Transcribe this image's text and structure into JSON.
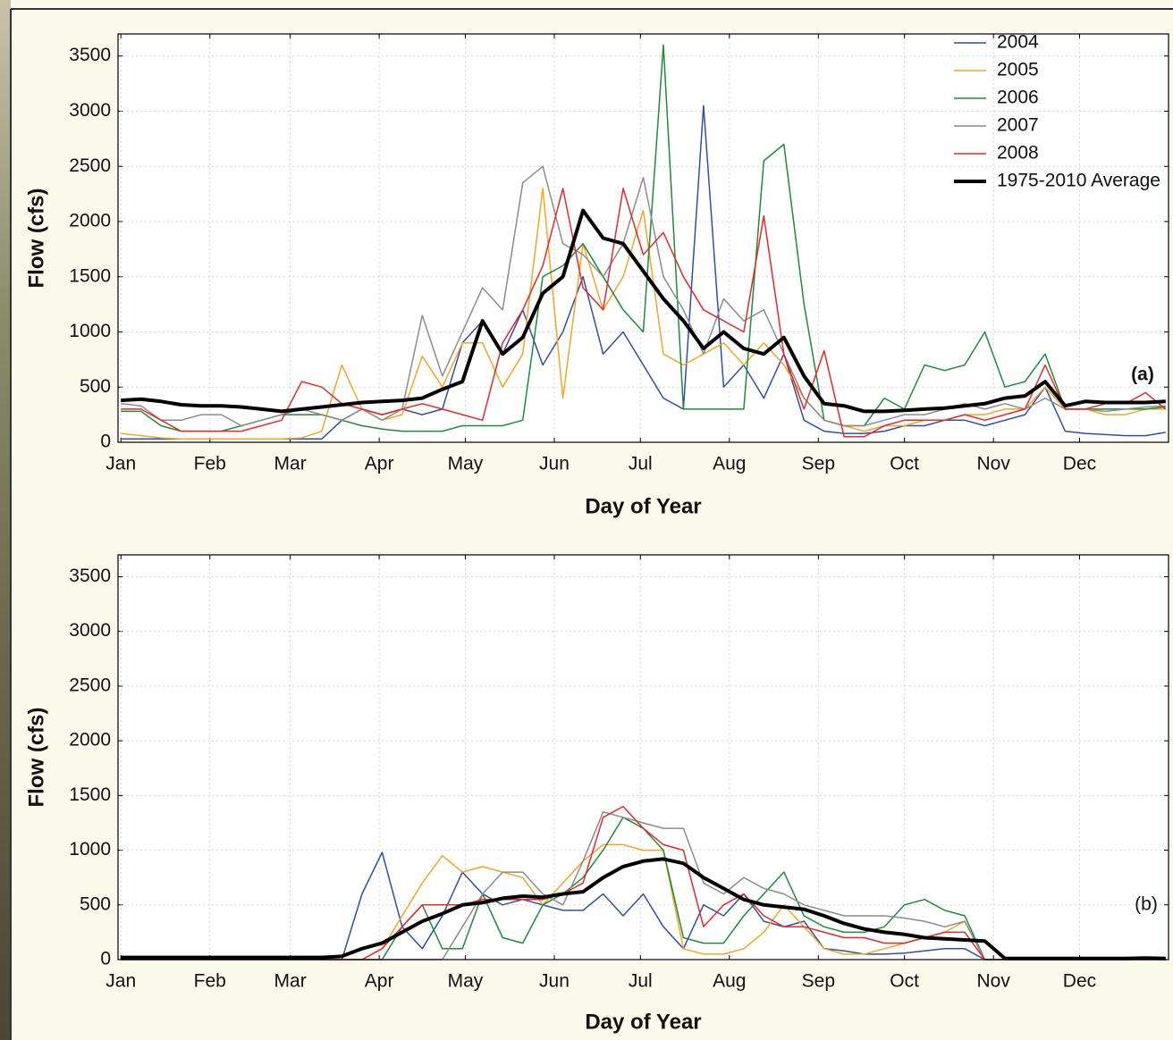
{
  "chart_data": [
    {
      "type": "line",
      "annotation": "(a)",
      "x_label": "Day of Year",
      "y_label": "Flow (cfs)",
      "xlim": [
        0,
        366
      ],
      "ylim": [
        0,
        3700
      ],
      "grid": true,
      "legend": "upper right",
      "xticks": [
        {
          "value": 1,
          "label": "Jan"
        },
        {
          "value": 32,
          "label": "Feb"
        },
        {
          "value": 60,
          "label": "Mar"
        },
        {
          "value": 91,
          "label": "Apr"
        },
        {
          "value": 121,
          "label": "May"
        },
        {
          "value": 152,
          "label": "Jun"
        },
        {
          "value": 182,
          "label": "Jul"
        },
        {
          "value": 213,
          "label": "Aug"
        },
        {
          "value": 244,
          "label": "Sep"
        },
        {
          "value": 274,
          "label": "Oct"
        },
        {
          "value": 305,
          "label": "Nov"
        },
        {
          "value": 335,
          "label": "Dec"
        }
      ],
      "yticks": [
        0,
        500,
        1000,
        1500,
        2000,
        2500,
        3000,
        3500
      ],
      "x": [
        1,
        8,
        15,
        22,
        29,
        36,
        43,
        50,
        57,
        64,
        71,
        78,
        85,
        92,
        99,
        106,
        113,
        120,
        127,
        134,
        141,
        148,
        155,
        162,
        169,
        176,
        183,
        190,
        197,
        204,
        211,
        218,
        225,
        232,
        239,
        246,
        253,
        260,
        267,
        274,
        281,
        288,
        295,
        302,
        309,
        316,
        323,
        330,
        337,
        344,
        351,
        358,
        365
      ],
      "series": [
        {
          "name": "2004",
          "color": "#2f4fa8",
          "width": 1.5,
          "values": [
            30,
            30,
            30,
            30,
            30,
            30,
            30,
            30,
            30,
            30,
            30,
            200,
            300,
            250,
            300,
            250,
            300,
            900,
            1100,
            800,
            1200,
            700,
            1000,
            1500,
            800,
            1000,
            700,
            400,
            300,
            3050,
            500,
            700,
            400,
            800,
            200,
            100,
            80,
            80,
            100,
            150,
            150,
            200,
            200,
            150,
            200,
            250,
            500,
            100,
            80,
            70,
            60,
            60,
            90
          ]
        },
        {
          "name": "2005",
          "color": "#f5a623",
          "width": 1.5,
          "values": [
            80,
            60,
            40,
            30,
            30,
            30,
            30,
            30,
            30,
            40,
            100,
            700,
            300,
            200,
            250,
            780,
            500,
            900,
            900,
            500,
            800,
            2300,
            400,
            1800,
            1200,
            1500,
            2100,
            800,
            700,
            800,
            900,
            700,
            900,
            700,
            400,
            200,
            150,
            100,
            150,
            150,
            200,
            200,
            250,
            250,
            300,
            300,
            500,
            300,
            300,
            250,
            250,
            300,
            300
          ]
        },
        {
          "name": "2006",
          "color": "#1e8c3a",
          "width": 1.5,
          "values": [
            280,
            280,
            150,
            100,
            100,
            100,
            150,
            200,
            250,
            250,
            250,
            200,
            150,
            120,
            100,
            100,
            100,
            150,
            150,
            150,
            200,
            1500,
            1600,
            1800,
            1500,
            1200,
            1000,
            3600,
            300,
            300,
            300,
            300,
            2550,
            2700,
            1250,
            200,
            150,
            150,
            400,
            300,
            700,
            650,
            700,
            1000,
            500,
            550,
            800,
            300,
            300,
            300,
            300,
            300,
            320
          ]
        },
        {
          "name": "2007",
          "color": "#8c8c8c",
          "width": 1.5,
          "values": [
            350,
            330,
            200,
            200,
            250,
            250,
            150,
            200,
            250,
            300,
            250,
            200,
            300,
            200,
            300,
            1150,
            600,
            1000,
            1400,
            1200,
            2350,
            2500,
            1800,
            1700,
            1500,
            1800,
            2400,
            1500,
            1200,
            800,
            1300,
            1100,
            1200,
            800,
            400,
            200,
            150,
            150,
            200,
            250,
            250,
            300,
            350,
            300,
            350,
            300,
            400,
            300,
            300,
            280,
            300,
            320,
            330
          ]
        },
        {
          "name": "2008",
          "color": "#e8282b",
          "width": 1.5,
          "values": [
            300,
            300,
            200,
            100,
            100,
            100,
            100,
            150,
            200,
            550,
            500,
            350,
            300,
            250,
            300,
            350,
            300,
            250,
            200,
            900,
            1200,
            1600,
            2300,
            1400,
            1200,
            2300,
            1700,
            1900,
            1500,
            1200,
            1100,
            1000,
            2050,
            800,
            300,
            830,
            50,
            50,
            150,
            200,
            200,
            200,
            250,
            200,
            250,
            300,
            700,
            300,
            300,
            350,
            350,
            450,
            300
          ]
        },
        {
          "name": "1975-2010 Average",
          "color": "#000000",
          "width": 4,
          "values": [
            380,
            390,
            370,
            340,
            330,
            330,
            320,
            300,
            280,
            300,
            320,
            340,
            360,
            370,
            380,
            400,
            480,
            550,
            1100,
            800,
            950,
            1350,
            1500,
            2100,
            1850,
            1800,
            1550,
            1300,
            1100,
            850,
            1000,
            850,
            800,
            950,
            600,
            350,
            330,
            280,
            280,
            290,
            300,
            310,
            330,
            350,
            400,
            420,
            550,
            330,
            370,
            360,
            360,
            360,
            370
          ]
        }
      ]
    },
    {
      "type": "line",
      "annotation": "(b)",
      "x_label": "Day of Year",
      "y_label": "Flow (cfs)",
      "xlim": [
        0,
        366
      ],
      "ylim": [
        0,
        3700
      ],
      "grid": true,
      "xticks": [
        {
          "value": 1,
          "label": "Jan"
        },
        {
          "value": 32,
          "label": "Feb"
        },
        {
          "value": 60,
          "label": "Mar"
        },
        {
          "value": 91,
          "label": "Apr"
        },
        {
          "value": 121,
          "label": "May"
        },
        {
          "value": 152,
          "label": "Jun"
        },
        {
          "value": 182,
          "label": "Jul"
        },
        {
          "value": 213,
          "label": "Aug"
        },
        {
          "value": 244,
          "label": "Sep"
        },
        {
          "value": 274,
          "label": "Oct"
        },
        {
          "value": 305,
          "label": "Nov"
        },
        {
          "value": 335,
          "label": "Dec"
        }
      ],
      "yticks": [
        0,
        500,
        1000,
        1500,
        2000,
        2500,
        3000,
        3500
      ],
      "x": [
        1,
        8,
        15,
        22,
        29,
        36,
        43,
        50,
        57,
        64,
        71,
        78,
        85,
        92,
        99,
        106,
        113,
        120,
        127,
        134,
        141,
        148,
        155,
        162,
        169,
        176,
        183,
        190,
        197,
        204,
        211,
        218,
        225,
        232,
        239,
        246,
        253,
        260,
        267,
        274,
        281,
        288,
        295,
        302,
        309,
        316,
        323,
        330,
        337,
        344,
        351,
        358,
        365
      ],
      "series": [
        {
          "color": "#2f4fa8",
          "width": 1.5,
          "values": [
            0,
            0,
            0,
            0,
            0,
            0,
            0,
            0,
            0,
            0,
            0,
            0,
            600,
            980,
            300,
            100,
            400,
            800,
            600,
            500,
            550,
            500,
            450,
            450,
            600,
            400,
            600,
            300,
            100,
            500,
            400,
            600,
            350,
            300,
            350,
            100,
            80,
            50,
            50,
            60,
            80,
            100,
            100,
            0,
            0,
            0,
            0,
            0,
            0,
            0,
            0,
            0,
            0
          ]
        },
        {
          "color": "#f5a623",
          "width": 1.5,
          "values": [
            0,
            0,
            0,
            0,
            0,
            0,
            0,
            0,
            0,
            0,
            0,
            0,
            0,
            100,
            400,
            700,
            950,
            800,
            850,
            800,
            750,
            500,
            700,
            900,
            1050,
            1050,
            1000,
            1000,
            100,
            50,
            50,
            100,
            250,
            500,
            300,
            100,
            50,
            50,
            100,
            150,
            200,
            250,
            350,
            0,
            0,
            0,
            0,
            0,
            0,
            0,
            0,
            0,
            0
          ]
        },
        {
          "color": "#1e8c3a",
          "width": 1.5,
          "values": [
            0,
            0,
            0,
            0,
            0,
            0,
            0,
            0,
            0,
            0,
            0,
            0,
            0,
            0,
            300,
            500,
            100,
            100,
            600,
            200,
            150,
            500,
            600,
            750,
            1000,
            1300,
            1200,
            1000,
            200,
            150,
            150,
            400,
            600,
            800,
            400,
            300,
            250,
            250,
            300,
            500,
            550,
            450,
            400,
            0,
            0,
            0,
            0,
            0,
            0,
            0,
            0,
            0,
            0
          ]
        },
        {
          "color": "#8c8c8c",
          "width": 1.5,
          "values": [
            0,
            0,
            0,
            0,
            0,
            0,
            0,
            0,
            0,
            0,
            0,
            0,
            0,
            0,
            0,
            0,
            0,
            300,
            600,
            800,
            800,
            600,
            500,
            900,
            1350,
            1300,
            1250,
            1200,
            1200,
            700,
            600,
            750,
            650,
            600,
            500,
            450,
            400,
            400,
            400,
            380,
            350,
            300,
            350,
            0,
            0,
            0,
            0,
            0,
            0,
            0,
            0,
            0,
            0
          ]
        },
        {
          "color": "#e8282b",
          "width": 1.5,
          "values": [
            0,
            0,
            0,
            0,
            0,
            0,
            0,
            0,
            0,
            0,
            0,
            0,
            0,
            100,
            300,
            500,
            500,
            500,
            550,
            550,
            550,
            550,
            600,
            700,
            1300,
            1400,
            1200,
            1050,
            1000,
            300,
            500,
            600,
            400,
            300,
            300,
            250,
            200,
            200,
            150,
            150,
            200,
            250,
            250,
            0,
            0,
            0,
            0,
            0,
            0,
            0,
            0,
            0,
            0
          ]
        },
        {
          "color": "#000000",
          "width": 4,
          "values": [
            20,
            20,
            20,
            20,
            20,
            20,
            20,
            20,
            20,
            20,
            20,
            30,
            100,
            150,
            250,
            350,
            420,
            500,
            520,
            560,
            580,
            570,
            600,
            620,
            750,
            850,
            900,
            920,
            880,
            750,
            650,
            550,
            500,
            480,
            460,
            400,
            330,
            280,
            250,
            230,
            200,
            190,
            180,
            170,
            10,
            10,
            10,
            10,
            10,
            10,
            10,
            15,
            10
          ]
        }
      ]
    }
  ]
}
